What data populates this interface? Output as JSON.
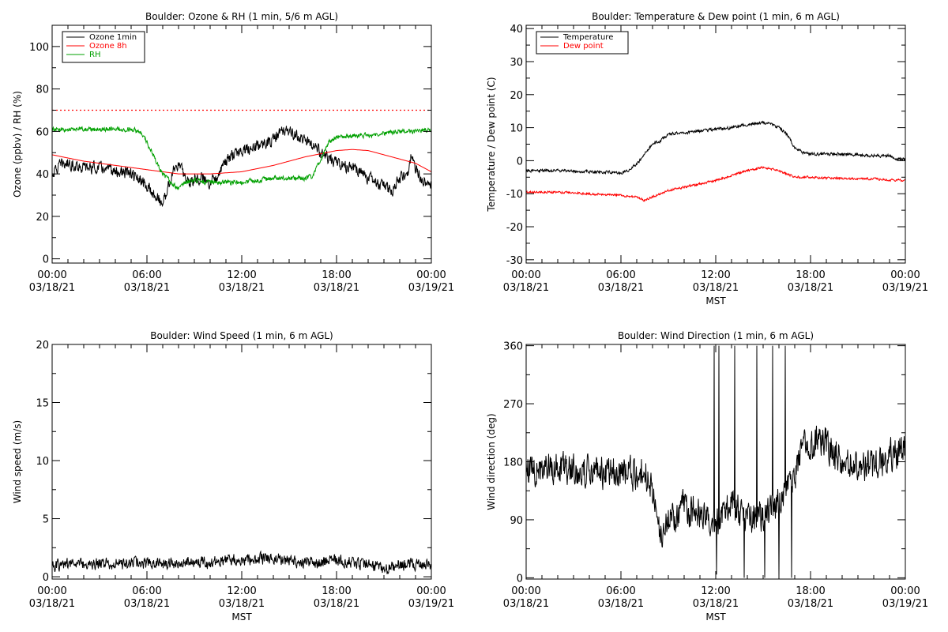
{
  "chart_data": [
    {
      "id": "ozone_rh",
      "type": "line",
      "title": "Boulder: Ozone & RH (1 min, 5/6 m AGL)",
      "xlabel": "",
      "ylabel": "Ozone (ppbv) / RH (%)",
      "xlim": [
        0,
        24
      ],
      "ylim": [
        -2,
        110
      ],
      "yticks": [
        0,
        20,
        40,
        60,
        80,
        100
      ],
      "xticks": [
        0,
        6,
        12,
        18,
        24
      ],
      "xticklabels": [
        [
          "00:00",
          "03/18/21"
        ],
        [
          "06:00",
          "03/18/21"
        ],
        [
          "12:00",
          "03/18/21"
        ],
        [
          "18:00",
          "03/18/21"
        ],
        [
          "00:00",
          "03/19/21"
        ]
      ],
      "grid": false,
      "legend": "top-left",
      "reference_lines": [
        {
          "y": 70,
          "color": "#ff0000",
          "style": "dotted"
        }
      ],
      "series": [
        {
          "name": "Ozone 1min",
          "color": "#000000",
          "noise": 2.5,
          "x": [
            0,
            0.5,
            1,
            2,
            3,
            4,
            5,
            5.5,
            6,
            6.5,
            7,
            7.3,
            7.7,
            8,
            8.3,
            8.7,
            9,
            9.5,
            10,
            10.5,
            11,
            11.5,
            12,
            13,
            14,
            14.5,
            15,
            15.5,
            16,
            16.5,
            17,
            17.5,
            18,
            18.5,
            19,
            19.5,
            20,
            20.5,
            21,
            21.5,
            22,
            22.5,
            22.7,
            23,
            23.5,
            24
          ],
          "y": [
            40,
            44,
            45,
            43,
            43,
            41,
            40,
            37,
            34,
            30,
            26,
            33,
            42,
            45,
            40,
            36,
            38,
            38,
            36,
            40,
            46,
            49,
            51,
            53,
            56,
            60,
            60,
            58,
            56,
            53,
            50,
            47,
            45,
            44,
            43,
            41,
            38,
            36,
            34,
            32,
            38,
            40,
            48,
            42,
            37,
            36
          ]
        },
        {
          "name": "Ozone 8h",
          "color": "#ff0000",
          "noise": 0,
          "x": [
            0,
            2,
            4,
            6,
            8,
            10,
            12,
            14,
            16,
            18,
            19,
            20,
            21,
            22,
            23,
            24
          ],
          "y": [
            49,
            46,
            44,
            42,
            40,
            40,
            41,
            44,
            48,
            51,
            51.5,
            51,
            49,
            47,
            45,
            41
          ]
        },
        {
          "name": "RH",
          "color": "#00a000",
          "noise": 1.0,
          "x": [
            0,
            1,
            2,
            3,
            4,
            5,
            5.5,
            6,
            6.5,
            7,
            7.5,
            8,
            8.5,
            9,
            10,
            11,
            12,
            13,
            14,
            15,
            16,
            16.5,
            17,
            17.5,
            18,
            19,
            20,
            21,
            22,
            23,
            24
          ],
          "y": [
            61,
            61,
            61,
            61,
            61,
            61,
            60,
            55,
            47,
            40,
            36,
            33,
            36,
            37,
            36,
            36,
            36,
            37,
            38,
            38,
            38,
            39,
            47,
            55,
            57,
            58,
            58,
            59,
            60,
            60,
            61
          ]
        }
      ]
    },
    {
      "id": "temp_dew",
      "type": "line",
      "title": "Boulder: Temperature & Dew point (1 min, 6 m AGL)",
      "xlabel": "MST",
      "ylabel": "Temperature / Dew point (C)",
      "xlim": [
        0,
        24
      ],
      "ylim": [
        -31,
        41
      ],
      "yticks": [
        -30,
        -20,
        -10,
        0,
        10,
        20,
        30,
        40
      ],
      "xticks": [
        0,
        6,
        12,
        18,
        24
      ],
      "xticklabels": [
        [
          "00:00",
          "03/18/21"
        ],
        [
          "06:00",
          "03/18/21"
        ],
        [
          "12:00",
          "03/18/21"
        ],
        [
          "18:00",
          "03/18/21"
        ],
        [
          "00:00",
          "03/19/21"
        ]
      ],
      "grid": false,
      "legend": "top-left",
      "series": [
        {
          "name": "Temperature",
          "color": "#000000",
          "noise": 0.4,
          "x": [
            0,
            2,
            4,
            6,
            6.5,
            7,
            7.5,
            8,
            8.5,
            9,
            10,
            11,
            12,
            13,
            14,
            15,
            15.5,
            16,
            16.5,
            17,
            17.5,
            18,
            19,
            20,
            21,
            22,
            23,
            23.5,
            24
          ],
          "y": [
            -3,
            -3,
            -3.3,
            -3.6,
            -3,
            -1,
            2,
            5,
            6,
            8,
            8.5,
            9,
            9.5,
            10,
            11,
            11.5,
            11,
            10,
            8,
            4,
            2.5,
            2,
            2,
            2,
            1.8,
            1.5,
            1.5,
            0.5,
            0.5
          ]
        },
        {
          "name": "Dew point",
          "color": "#ff0000",
          "noise": 0.3,
          "x": [
            0,
            2,
            4,
            6,
            7,
            7.5,
            8,
            9,
            10,
            11,
            12,
            13,
            14,
            15,
            16,
            17,
            18,
            19,
            20,
            21,
            22,
            23,
            24
          ],
          "y": [
            -9.5,
            -9.5,
            -10,
            -10.5,
            -11,
            -12,
            -11,
            -9,
            -8,
            -7,
            -6,
            -4.5,
            -3,
            -2,
            -3,
            -5,
            -5,
            -5.3,
            -5.3,
            -5.5,
            -5.5,
            -5.8,
            -6
          ]
        }
      ]
    },
    {
      "id": "wind_speed",
      "type": "line",
      "title": "Boulder: Wind Speed (1 min, 6 m AGL)",
      "xlabel": "MST",
      "ylabel": "Wind speed (m/s)",
      "xlim": [
        0,
        24
      ],
      "ylim": [
        -0.2,
        20
      ],
      "yticks": [
        0,
        5,
        10,
        15,
        20
      ],
      "xticks": [
        0,
        6,
        12,
        18,
        24
      ],
      "xticklabels": [
        [
          "00:00",
          "03/18/21"
        ],
        [
          "06:00",
          "03/18/21"
        ],
        [
          "12:00",
          "03/18/21"
        ],
        [
          "18:00",
          "03/18/21"
        ],
        [
          "00:00",
          "03/19/21"
        ]
      ],
      "grid": false,
      "legend": "none",
      "series": [
        {
          "name": "",
          "color": "#000000",
          "noise": 0.45,
          "x": [
            0,
            2,
            4,
            6,
            8,
            10,
            11,
            12,
            13,
            14,
            15,
            16,
            17,
            18,
            19,
            20,
            21,
            22,
            23,
            24
          ],
          "y": [
            1,
            1.1,
            1.1,
            1.1,
            1.2,
            1.2,
            1.5,
            1.4,
            1.5,
            1.6,
            1.3,
            1.2,
            1.2,
            1.5,
            1.3,
            1.1,
            0.6,
            1,
            1.1,
            1.1
          ]
        }
      ]
    },
    {
      "id": "wind_dir",
      "type": "line",
      "title": "Boulder: Wind Direction (1 min, 6 m AGL)",
      "xlabel": "MST",
      "ylabel": "Wind direction (deg)",
      "xlim": [
        0,
        24
      ],
      "ylim": [
        -2,
        362
      ],
      "yticks": [
        0,
        90,
        180,
        270,
        360
      ],
      "xticks": [
        0,
        6,
        12,
        18,
        24
      ],
      "xticklabels": [
        [
          "00:00",
          "03/18/21"
        ],
        [
          "06:00",
          "03/18/21"
        ],
        [
          "12:00",
          "03/18/21"
        ],
        [
          "18:00",
          "03/18/21"
        ],
        [
          "00:00",
          "03/19/21"
        ]
      ],
      "grid": false,
      "legend": "none",
      "series": [
        {
          "name": "",
          "color": "#000000",
          "noise": 22,
          "x": [
            0,
            2,
            4,
            5,
            6,
            7,
            7.5,
            8,
            8.5,
            9,
            10,
            11,
            12,
            13,
            14,
            15,
            16,
            17,
            17.5,
            18,
            19,
            20,
            21,
            22,
            23,
            24
          ],
          "y": [
            170,
            170,
            165,
            165,
            165,
            160,
            170,
            130,
            70,
            90,
            110,
            100,
            80,
            120,
            90,
            100,
            120,
            160,
            205,
            210,
            210,
            180,
            180,
            170,
            190,
            200
          ],
          "spikes": [
            [
              11.9,
              360
            ],
            [
              12.05,
              5
            ],
            [
              12.2,
              360
            ],
            [
              13.2,
              360
            ],
            [
              13.8,
              0
            ],
            [
              14.6,
              360
            ],
            [
              15.1,
              0
            ],
            [
              15.6,
              360
            ],
            [
              16.0,
              0
            ],
            [
              16.4,
              360
            ],
            [
              16.8,
              0
            ]
          ]
        }
      ]
    }
  ]
}
